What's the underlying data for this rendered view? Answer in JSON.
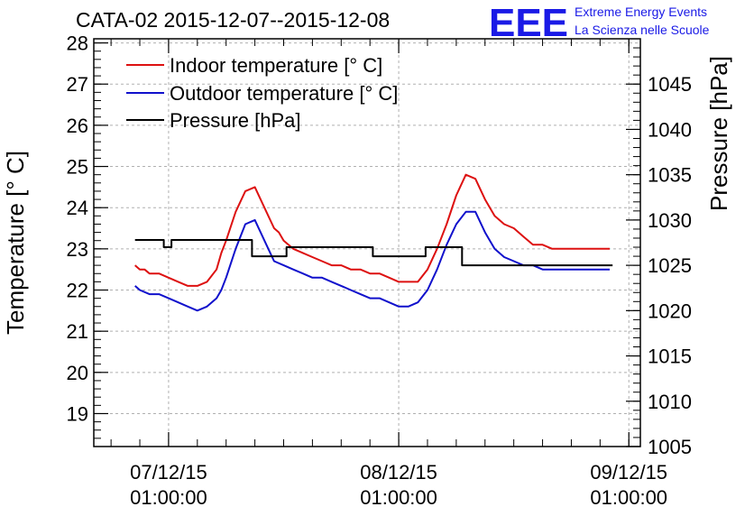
{
  "logo": {
    "mark": "EEE",
    "line1": "Extreme Energy Events",
    "line2": "La Scienza nelle Scuole",
    "color": "#1a1ae6"
  },
  "chart_data": {
    "type": "line",
    "title": "CATA-02 2015-12-07--2015-12-08",
    "ylabel": "Temperature [° C]",
    "y2label": "Pressure [hPa]",
    "xlabel": "",
    "grid": true,
    "legend_position": "top-left",
    "x_ticks": [
      {
        "date": "07/12/15",
        "time": "01:00:00",
        "hour": 1
      },
      {
        "date": "08/12/15",
        "time": "01:00:00",
        "hour": 25
      },
      {
        "date": "09/12/15",
        "time": "01:00:00",
        "hour": 49
      }
    ],
    "xlim_hours": [
      -6.8,
      50.2
    ],
    "ylim": [
      18.2,
      28.1
    ],
    "y_ticks": [
      19,
      20,
      21,
      22,
      23,
      24,
      25,
      26,
      27,
      28
    ],
    "y2lim": [
      1005,
      1050
    ],
    "y2_ticks": [
      1005,
      1010,
      1015,
      1020,
      1025,
      1030,
      1035,
      1040,
      1045
    ],
    "series": [
      {
        "name": "Indoor temperature [° C]",
        "color": "#dd1111",
        "axis": "left",
        "x_hours": [
          -2.5,
          -2,
          -1.5,
          -1,
          0,
          1,
          2,
          3,
          4,
          5,
          6,
          6.5,
          7,
          8,
          9,
          10,
          11,
          12,
          12.5,
          13,
          14,
          15,
          16,
          17,
          18,
          19,
          20,
          21,
          22,
          23,
          24,
          25,
          26,
          27,
          28,
          29,
          30,
          31,
          32,
          33,
          34,
          35,
          36,
          37,
          38,
          39,
          40,
          41,
          42,
          43,
          44,
          45,
          46,
          47
        ],
        "values": [
          22.6,
          22.5,
          22.5,
          22.4,
          22.4,
          22.3,
          22.2,
          22.1,
          22.1,
          22.2,
          22.5,
          22.9,
          23.2,
          23.9,
          24.4,
          24.5,
          24.0,
          23.5,
          23.4,
          23.2,
          23.0,
          22.9,
          22.8,
          22.7,
          22.6,
          22.6,
          22.5,
          22.5,
          22.4,
          22.4,
          22.3,
          22.2,
          22.2,
          22.2,
          22.5,
          23.0,
          23.6,
          24.3,
          24.8,
          24.7,
          24.2,
          23.8,
          23.6,
          23.5,
          23.3,
          23.1,
          23.1,
          23.0,
          23.0,
          23.0,
          23.0,
          23.0,
          23.0,
          23.0
        ]
      },
      {
        "name": "Outdoor temperature [° C]",
        "color": "#1111cc",
        "axis": "left",
        "x_hours": [
          -2.5,
          -2,
          -1,
          0,
          1,
          2,
          3,
          4,
          5,
          6,
          6.5,
          7,
          8,
          9,
          10,
          11,
          12,
          13,
          14,
          15,
          16,
          17,
          18,
          19,
          20,
          21,
          22,
          23,
          24,
          25,
          26,
          27,
          28,
          29,
          30,
          31,
          32,
          33,
          34,
          35,
          36,
          37,
          38,
          39,
          40,
          41,
          42,
          43,
          44,
          45,
          46,
          47
        ],
        "values": [
          22.1,
          22.0,
          21.9,
          21.9,
          21.8,
          21.7,
          21.6,
          21.5,
          21.6,
          21.8,
          22.0,
          22.3,
          23.0,
          23.6,
          23.7,
          23.2,
          22.7,
          22.6,
          22.5,
          22.4,
          22.3,
          22.3,
          22.2,
          22.1,
          22.0,
          21.9,
          21.8,
          21.8,
          21.7,
          21.6,
          21.6,
          21.7,
          22.0,
          22.5,
          23.1,
          23.6,
          23.9,
          23.9,
          23.4,
          23.0,
          22.8,
          22.7,
          22.6,
          22.6,
          22.5,
          22.5,
          22.5,
          22.5,
          22.5,
          22.5,
          22.5,
          22.5
        ]
      },
      {
        "name": "Pressure [hPa]",
        "color": "#000000",
        "axis": "right",
        "x_hours": [
          -2.5,
          0.5,
          0.5,
          1.3,
          1.3,
          2.8,
          2.8,
          9.7,
          9.7,
          13.3,
          13.3,
          22.3,
          22.3,
          27.8,
          27.8,
          31.6,
          31.6,
          47.3
        ],
        "values": [
          1027.8,
          1027.8,
          1027.0,
          1027.0,
          1027.8,
          1027.8,
          1027.8,
          1027.8,
          1026.0,
          1026.0,
          1027.0,
          1027.0,
          1026.0,
          1026.0,
          1027.0,
          1027.0,
          1025.0,
          1025.0
        ]
      }
    ]
  }
}
